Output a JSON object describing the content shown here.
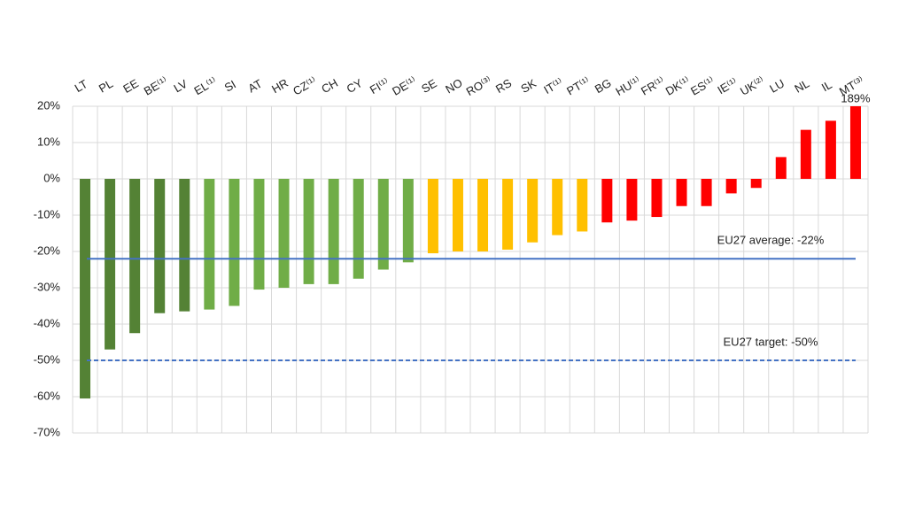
{
  "chart_data": {
    "type": "bar",
    "categories": [
      "LT",
      "PL",
      "EE",
      "BE⁽¹⁾",
      "LV",
      "EL⁽¹⁾",
      "SI",
      "AT",
      "HR",
      "CZ⁽¹⁾",
      "CH",
      "CY",
      "FI⁽¹⁾",
      "DE⁽¹⁾",
      "SE",
      "NO",
      "RO⁽³⁾",
      "RS",
      "SK",
      "IT⁽¹⁾",
      "PT⁽¹⁾",
      "BG",
      "HU⁽¹⁾",
      "FR⁽¹⁾",
      "DK⁽¹⁾",
      "ES⁽¹⁾",
      "IE⁽¹⁾",
      "UK⁽²⁾",
      "LU",
      "NL",
      "IL",
      "MT⁽³⁾"
    ],
    "values": [
      -60.5,
      -47,
      -42.5,
      -37,
      -36.5,
      -36,
      -35,
      -30.5,
      -30,
      -29,
      -29,
      -27.5,
      -25,
      -23,
      -20.5,
      -20,
      -20,
      -19.5,
      -17.5,
      -15.5,
      -14.5,
      -12,
      -11.5,
      -10.5,
      -7.5,
      -7.5,
      -4,
      -2.5,
      6,
      13.5,
      16,
      189
    ],
    "value_labels": [
      null,
      null,
      null,
      null,
      null,
      null,
      null,
      null,
      null,
      null,
      null,
      null,
      null,
      null,
      null,
      null,
      null,
      null,
      null,
      null,
      null,
      null,
      null,
      null,
      null,
      null,
      null,
      null,
      null,
      null,
      null,
      "189%"
    ],
    "colors": [
      "#548235",
      "#548235",
      "#548235",
      "#548235",
      "#548235",
      "#70ad47",
      "#70ad47",
      "#70ad47",
      "#70ad47",
      "#70ad47",
      "#70ad47",
      "#70ad47",
      "#70ad47",
      "#70ad47",
      "#ffc000",
      "#ffc000",
      "#ffc000",
      "#ffc000",
      "#ffc000",
      "#ffc000",
      "#ffc000",
      "#ff0000",
      "#ff0000",
      "#ff0000",
      "#ff0000",
      "#ff0000",
      "#ff0000",
      "#ff0000",
      "#ff0000",
      "#ff0000",
      "#ff0000",
      "#ff0000"
    ],
    "ylim": [
      -70,
      20
    ],
    "yticks": [
      {
        "value": -70,
        "label": "-70%"
      },
      {
        "value": -60,
        "label": "-60%"
      },
      {
        "value": -50,
        "label": "-50%"
      },
      {
        "value": -40,
        "label": "-40%"
      },
      {
        "value": -30,
        "label": "-30%"
      },
      {
        "value": -20,
        "label": "-20%"
      },
      {
        "value": -10,
        "label": "-10%"
      },
      {
        "value": 0,
        "label": "0%"
      },
      {
        "value": 10,
        "label": "10%"
      },
      {
        "value": 20,
        "label": "20%"
      }
    ],
    "grid": true,
    "reference_lines": [
      {
        "value": -22,
        "label": "EU27 average: -22%",
        "color": "#4472c4",
        "dashed": false
      },
      {
        "value": -50,
        "label": "EU27 target: -50%",
        "color": "#4472c4",
        "dashed": true
      }
    ]
  }
}
